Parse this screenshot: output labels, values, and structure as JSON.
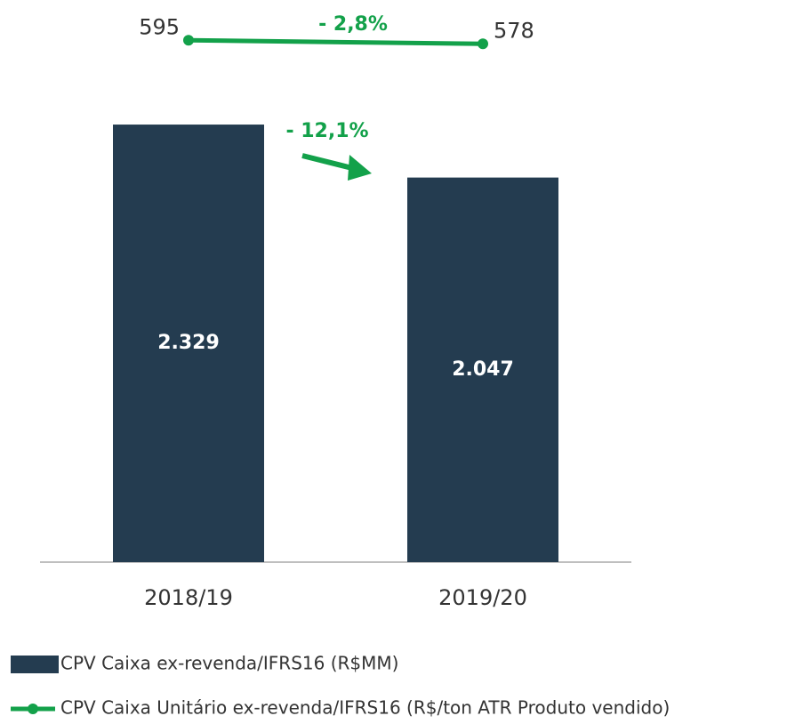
{
  "chart_data": {
    "type": "bar",
    "categories": [
      "2018/19",
      "2019/20"
    ],
    "series": [
      {
        "name": "CPV Caixa ex-revenda/IFRS16 (R$MM)",
        "color": "#243c50",
        "values": [
          2329,
          2047
        ],
        "value_labels": [
          "2.329",
          "2.047"
        ]
      },
      {
        "name": "CPV Caixa Unitário ex-revenda/IFRS16 (R$/ton ATR Produto vendido)",
        "color": "#13a14a",
        "type": "line",
        "axis": "y2",
        "values": [
          595,
          578
        ]
      }
    ],
    "ylim": [
      0,
      2850
    ],
    "y2lim": [
      -1900,
      660
    ],
    "annotations": [
      {
        "text": "- 2,8%"
      },
      {
        "text": "- 12,1%"
      }
    ]
  }
}
